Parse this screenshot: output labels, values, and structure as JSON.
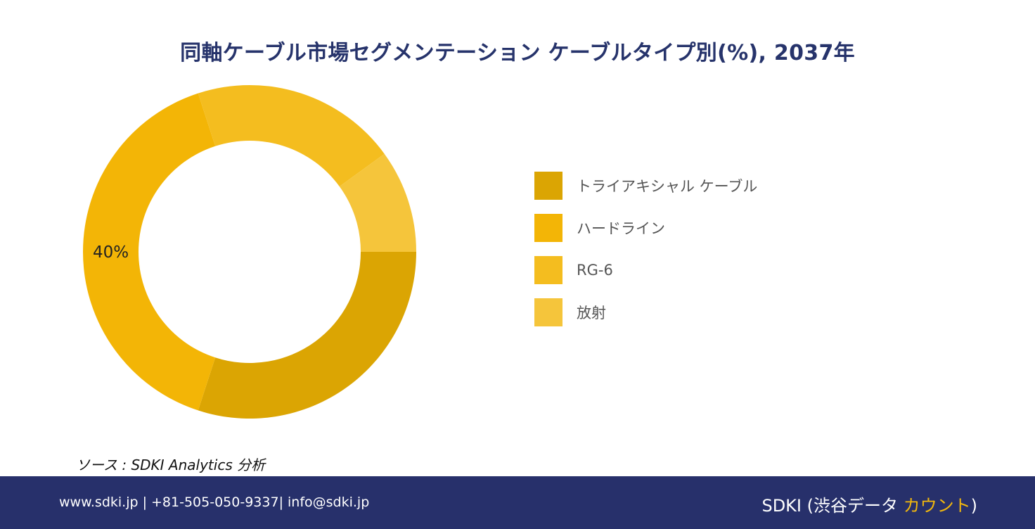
{
  "title": "同軸ケーブル市場セグメンテーション ケーブルタイプ別(%), 2037年",
  "chart_data": {
    "type": "pie",
    "donut": true,
    "categories": [
      "トライアキシャル ケーブル",
      "ハードライン",
      "RG-6",
      "放射"
    ],
    "values": [
      30,
      40,
      20,
      10
    ],
    "colors": [
      "#dba503",
      "#f3b506",
      "#f4bd1f",
      "#f5c53b"
    ],
    "data_labels": [
      "",
      "40%",
      "",
      ""
    ],
    "legend_position": "right"
  },
  "source": "ソース : SDKI Analytics 分析",
  "footer": {
    "contact": "www.sdki.jp | +81-505-050-9337| info@sdki.jp",
    "brand_prefix": "SDKI (渋谷データ ",
    "brand_accent": "カウント",
    "brand_suffix": ")"
  }
}
